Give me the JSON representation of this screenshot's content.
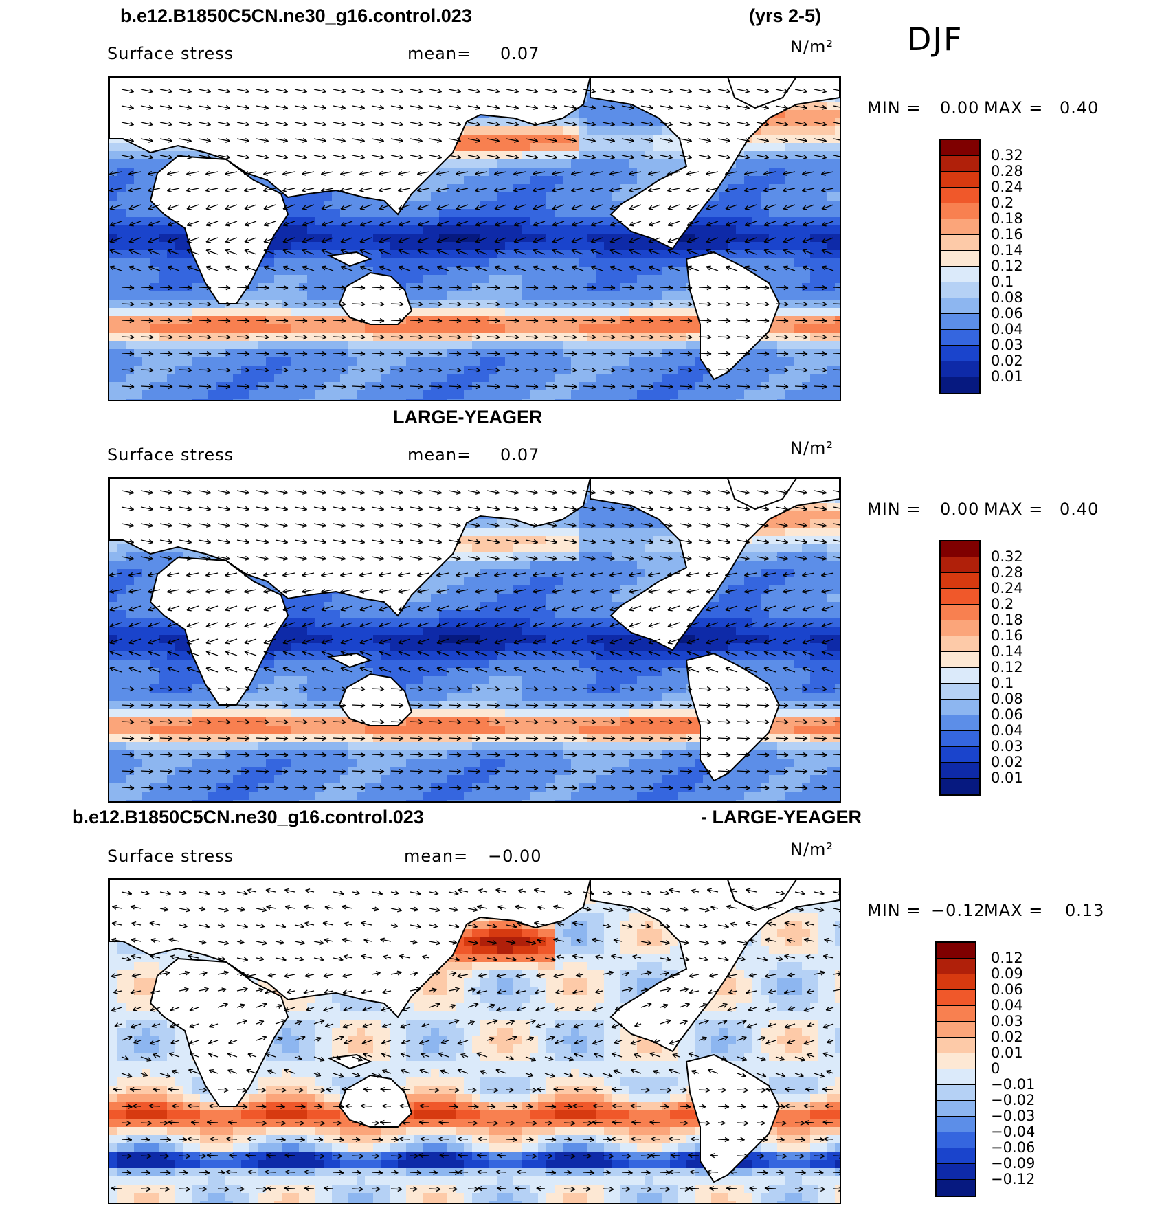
{
  "header": {
    "case_name": "b.e12.B1850C5CN.ne30_g16.control.023",
    "years": "(yrs 2-5)",
    "season": "DJF"
  },
  "panels": [
    {
      "title": "",
      "variable": "Surface stress",
      "mean_label": "mean=",
      "mean_value": "0.07",
      "units": "N/m²",
      "min_label": "MIN =",
      "min_value": "0.00",
      "max_label": "MAX =",
      "max_value": "0.40",
      "levels": [
        "0.32",
        "0.28",
        "0.24",
        "0.2",
        "0.18",
        "0.16",
        "0.14",
        "0.12",
        "0.1",
        "0.08",
        "0.06",
        "0.04",
        "0.03",
        "0.02",
        "0.01"
      ],
      "colors": [
        "#7f0000",
        "#b0200a",
        "#d73a10",
        "#f0582a",
        "#f88050",
        "#fba57a",
        "#fdcaa8",
        "#fde8d4",
        "#dbeafa",
        "#b5d1f5",
        "#8db6f0",
        "#5c8ee8",
        "#3566df",
        "#1a44cc",
        "#0e2aa8",
        "#061980"
      ]
    },
    {
      "title": "LARGE-YEAGER",
      "variable": "Surface stress",
      "mean_label": "mean=",
      "mean_value": "0.07",
      "units": "N/m²",
      "min_label": "MIN =",
      "min_value": "0.00",
      "max_label": "MAX =",
      "max_value": "0.40",
      "levels": [
        "0.32",
        "0.28",
        "0.24",
        "0.2",
        "0.18",
        "0.16",
        "0.14",
        "0.12",
        "0.1",
        "0.08",
        "0.06",
        "0.04",
        "0.03",
        "0.02",
        "0.01"
      ],
      "colors": [
        "#7f0000",
        "#b0200a",
        "#d73a10",
        "#f0582a",
        "#f88050",
        "#fba57a",
        "#fdcaa8",
        "#fde8d4",
        "#dbeafa",
        "#b5d1f5",
        "#8db6f0",
        "#5c8ee8",
        "#3566df",
        "#1a44cc",
        "#0e2aa8",
        "#061980"
      ]
    },
    {
      "title_left": "b.e12.B1850C5CN.ne30_g16.control.023",
      "title_right": "- LARGE-YEAGER",
      "variable": "Surface stress",
      "mean_label": "mean=",
      "mean_value": "−0.00",
      "units": "N/m²",
      "min_label": "MIN =",
      "min_value": "−0.12",
      "max_label": "MAX =",
      "max_value": "0.13",
      "levels": [
        "0.12",
        "0.09",
        "0.06",
        "0.04",
        "0.03",
        "0.02",
        "0.01",
        "0",
        "−0.01",
        "−0.02",
        "−0.03",
        "−0.04",
        "−0.06",
        "−0.09",
        "−0.12"
      ],
      "colors": [
        "#7f0000",
        "#b0200a",
        "#d73a10",
        "#f0582a",
        "#f88050",
        "#fba57a",
        "#fdcaa8",
        "#fde8d4",
        "#dbeafa",
        "#b5d1f5",
        "#8db6f0",
        "#5c8ee8",
        "#3566df",
        "#1a44cc",
        "#0e2aa8",
        "#061980"
      ]
    }
  ]
}
